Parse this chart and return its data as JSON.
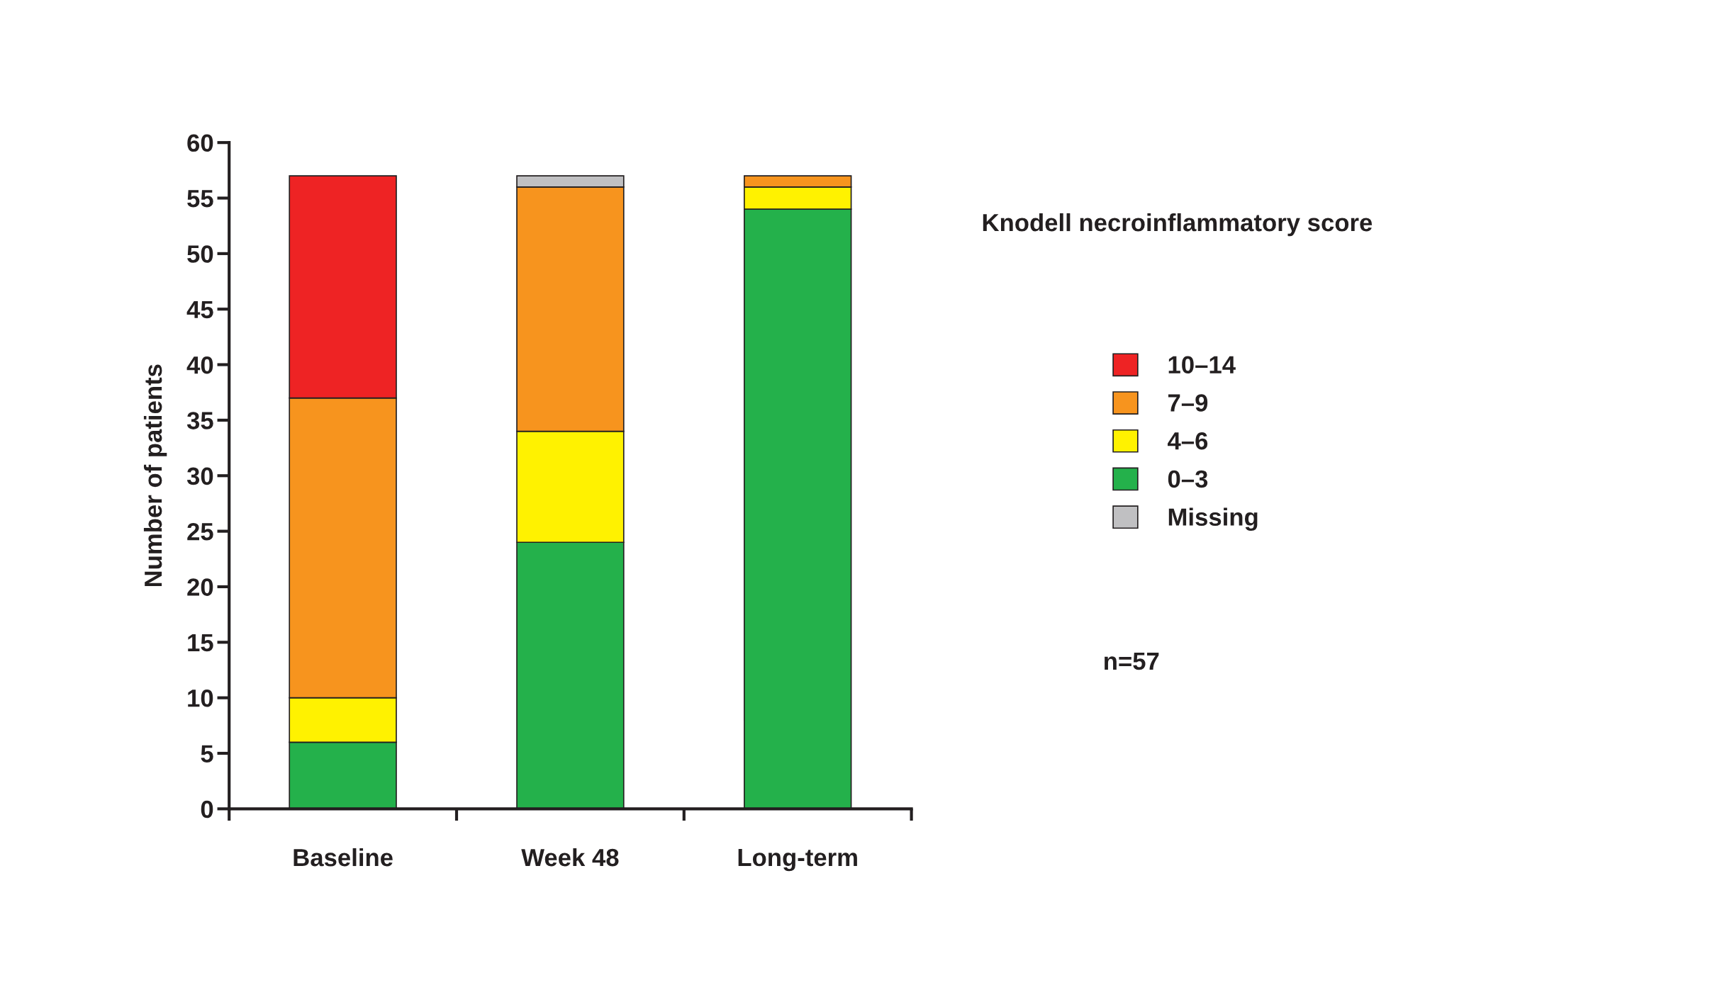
{
  "chart_data": {
    "type": "bar",
    "stacked": true,
    "ylabel": "Number of patients",
    "categories": [
      "Baseline",
      "Week 48",
      "Long-term"
    ],
    "series": [
      {
        "name": "0–3",
        "color": "#24b14b",
        "values": [
          6,
          24,
          54
        ]
      },
      {
        "name": "4–6",
        "color": "#fff200",
        "values": [
          4,
          10,
          2
        ]
      },
      {
        "name": "7–9",
        "color": "#f7941e",
        "values": [
          27,
          22,
          1
        ]
      },
      {
        "name": "10–14",
        "color": "#ee2324",
        "values": [
          20,
          0,
          0
        ]
      },
      {
        "name": "Missing",
        "color": "#c0c0c2",
        "values": [
          0,
          1,
          0
        ]
      }
    ],
    "ylim": [
      0,
      60
    ],
    "yticks": [
      0,
      5,
      10,
      15,
      20,
      25,
      30,
      35,
      40,
      45,
      50,
      55,
      60
    ],
    "grid": false,
    "legend": "right",
    "legend_title": "Knodell necroinflammatory score",
    "annotations": [
      "n=57"
    ]
  }
}
